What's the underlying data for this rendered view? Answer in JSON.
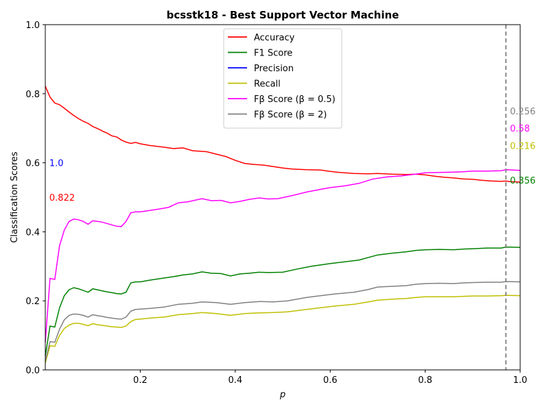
{
  "chart_data": {
    "type": "line",
    "title": "bcsstk18 - Best Support Vector Machine",
    "xlabel": "p",
    "ylabel": "Classification Scores",
    "xlim": [
      0.0,
      1.0
    ],
    "ylim": [
      0.0,
      1.0
    ],
    "x_ticks": [
      "0.2",
      "0.4",
      "0.6",
      "0.8",
      "1.0"
    ],
    "y_ticks": [
      "0.0",
      "0.2",
      "0.4",
      "0.6",
      "0.8",
      "1.0"
    ],
    "grid": false,
    "legend_position": "upper center",
    "vline": {
      "x": 0.97,
      "color": "#808080",
      "style": "dashed"
    },
    "series": [
      {
        "name": "Accuracy",
        "legend_label": "Accuracy",
        "color": "#ff0000",
        "x": [
          0.0,
          0.01,
          0.02,
          0.03,
          0.04,
          0.05,
          0.06,
          0.07,
          0.08,
          0.09,
          0.1,
          0.11,
          0.12,
          0.13,
          0.14,
          0.15,
          0.16,
          0.17,
          0.18,
          0.19,
          0.2,
          0.22,
          0.25,
          0.27,
          0.29,
          0.31,
          0.34,
          0.36,
          0.38,
          0.4,
          0.42,
          0.44,
          0.46,
          0.48,
          0.5,
          0.52,
          0.55,
          0.58,
          0.6,
          0.62,
          0.65,
          0.68,
          0.7,
          0.73,
          0.76,
          0.78,
          0.8,
          0.82,
          0.84,
          0.86,
          0.88,
          0.9,
          0.92,
          0.94,
          0.96,
          0.97,
          0.98,
          1.0
        ],
        "y": [
          0.822,
          0.79,
          0.773,
          0.768,
          0.758,
          0.747,
          0.737,
          0.728,
          0.72,
          0.714,
          0.705,
          0.699,
          0.692,
          0.686,
          0.678,
          0.675,
          0.666,
          0.66,
          0.656,
          0.659,
          0.655,
          0.65,
          0.645,
          0.641,
          0.643,
          0.635,
          0.632,
          0.625,
          0.618,
          0.607,
          0.598,
          0.595,
          0.593,
          0.589,
          0.585,
          0.582,
          0.58,
          0.579,
          0.575,
          0.572,
          0.569,
          0.568,
          0.569,
          0.567,
          0.566,
          0.567,
          0.565,
          0.561,
          0.558,
          0.556,
          0.553,
          0.552,
          0.549,
          0.547,
          0.546,
          0.547,
          0.545,
          0.544
        ]
      },
      {
        "name": "F1 Score",
        "legend_label": "F1 Score",
        "color": "#008000",
        "x": [
          0.0,
          0.01,
          0.02,
          0.03,
          0.04,
          0.05,
          0.06,
          0.07,
          0.08,
          0.09,
          0.1,
          0.11,
          0.12,
          0.13,
          0.14,
          0.15,
          0.16,
          0.17,
          0.18,
          0.19,
          0.2,
          0.22,
          0.25,
          0.27,
          0.29,
          0.31,
          0.33,
          0.35,
          0.37,
          0.39,
          0.41,
          0.43,
          0.45,
          0.47,
          0.5,
          0.53,
          0.56,
          0.6,
          0.63,
          0.66,
          0.7,
          0.73,
          0.76,
          0.78,
          0.8,
          0.83,
          0.86,
          0.88,
          0.9,
          0.93,
          0.96,
          0.97,
          1.0
        ],
        "y": [
          0.04,
          0.127,
          0.124,
          0.18,
          0.215,
          0.232,
          0.238,
          0.235,
          0.23,
          0.225,
          0.235,
          0.232,
          0.229,
          0.226,
          0.224,
          0.221,
          0.22,
          0.225,
          0.252,
          0.255,
          0.255,
          0.26,
          0.266,
          0.27,
          0.275,
          0.278,
          0.284,
          0.28,
          0.279,
          0.272,
          0.278,
          0.28,
          0.283,
          0.282,
          0.283,
          0.292,
          0.3,
          0.308,
          0.313,
          0.318,
          0.333,
          0.338,
          0.342,
          0.346,
          0.348,
          0.349,
          0.348,
          0.35,
          0.351,
          0.353,
          0.353,
          0.356,
          0.355
        ]
      },
      {
        "name": "Precision",
        "legend_label": "Precision",
        "color": "#0000ff",
        "x": [],
        "y": []
      },
      {
        "name": "Recall",
        "legend_label": "Recall",
        "color": "#bfbf00",
        "x": [
          0.0,
          0.01,
          0.02,
          0.03,
          0.04,
          0.05,
          0.06,
          0.07,
          0.08,
          0.09,
          0.1,
          0.11,
          0.12,
          0.13,
          0.14,
          0.15,
          0.16,
          0.17,
          0.18,
          0.19,
          0.2,
          0.22,
          0.25,
          0.28,
          0.31,
          0.33,
          0.36,
          0.39,
          0.42,
          0.45,
          0.48,
          0.51,
          0.55,
          0.58,
          0.61,
          0.65,
          0.68,
          0.7,
          0.73,
          0.76,
          0.78,
          0.8,
          0.83,
          0.86,
          0.88,
          0.9,
          0.93,
          0.96,
          0.97,
          1.0
        ],
        "y": [
          0.02,
          0.07,
          0.068,
          0.1,
          0.12,
          0.13,
          0.135,
          0.135,
          0.132,
          0.128,
          0.134,
          0.131,
          0.129,
          0.127,
          0.125,
          0.124,
          0.123,
          0.127,
          0.14,
          0.146,
          0.147,
          0.15,
          0.153,
          0.16,
          0.163,
          0.166,
          0.163,
          0.158,
          0.163,
          0.165,
          0.166,
          0.168,
          0.175,
          0.18,
          0.185,
          0.19,
          0.197,
          0.202,
          0.205,
          0.207,
          0.21,
          0.212,
          0.212,
          0.212,
          0.213,
          0.214,
          0.214,
          0.215,
          0.216,
          0.215
        ]
      },
      {
        "name": "Fβ Score (β=0.5)",
        "legend_label": "Fβ Score (β = 0.5)",
        "color": "#ff00ff",
        "x": [
          0.0,
          0.01,
          0.02,
          0.03,
          0.04,
          0.05,
          0.06,
          0.07,
          0.08,
          0.09,
          0.1,
          0.11,
          0.12,
          0.13,
          0.14,
          0.15,
          0.16,
          0.17,
          0.18,
          0.19,
          0.2,
          0.22,
          0.24,
          0.26,
          0.28,
          0.3,
          0.33,
          0.35,
          0.37,
          0.39,
          0.41,
          0.43,
          0.45,
          0.47,
          0.49,
          0.52,
          0.55,
          0.58,
          0.6,
          0.63,
          0.66,
          0.69,
          0.72,
          0.75,
          0.78,
          0.8,
          0.83,
          0.86,
          0.88,
          0.9,
          0.93,
          0.96,
          0.97,
          1.0
        ],
        "y": [
          0.08,
          0.265,
          0.262,
          0.36,
          0.405,
          0.43,
          0.437,
          0.435,
          0.43,
          0.422,
          0.432,
          0.43,
          0.428,
          0.424,
          0.42,
          0.416,
          0.415,
          0.43,
          0.455,
          0.458,
          0.458,
          0.462,
          0.466,
          0.471,
          0.484,
          0.487,
          0.496,
          0.49,
          0.491,
          0.484,
          0.488,
          0.494,
          0.498,
          0.495,
          0.496,
          0.505,
          0.515,
          0.523,
          0.528,
          0.533,
          0.54,
          0.553,
          0.559,
          0.562,
          0.567,
          0.571,
          0.572,
          0.573,
          0.574,
          0.576,
          0.576,
          0.577,
          0.58,
          0.578
        ]
      },
      {
        "name": "Fβ Score (β=2)",
        "legend_label": "Fβ Score (β = 2)",
        "color": "#808080",
        "x": [
          0.0,
          0.01,
          0.02,
          0.03,
          0.04,
          0.05,
          0.06,
          0.07,
          0.08,
          0.09,
          0.1,
          0.11,
          0.12,
          0.13,
          0.14,
          0.15,
          0.16,
          0.17,
          0.18,
          0.19,
          0.2,
          0.22,
          0.25,
          0.28,
          0.31,
          0.33,
          0.36,
          0.39,
          0.42,
          0.45,
          0.48,
          0.51,
          0.55,
          0.58,
          0.61,
          0.65,
          0.68,
          0.7,
          0.73,
          0.76,
          0.78,
          0.8,
          0.83,
          0.86,
          0.88,
          0.9,
          0.93,
          0.96,
          0.97,
          1.0
        ],
        "y": [
          0.025,
          0.082,
          0.08,
          0.118,
          0.145,
          0.158,
          0.162,
          0.161,
          0.158,
          0.153,
          0.16,
          0.157,
          0.155,
          0.152,
          0.15,
          0.148,
          0.147,
          0.153,
          0.17,
          0.175,
          0.176,
          0.178,
          0.182,
          0.19,
          0.193,
          0.197,
          0.195,
          0.19,
          0.195,
          0.198,
          0.197,
          0.2,
          0.21,
          0.215,
          0.22,
          0.225,
          0.233,
          0.24,
          0.242,
          0.244,
          0.248,
          0.25,
          0.251,
          0.25,
          0.252,
          0.253,
          0.254,
          0.254,
          0.256,
          0.255
        ]
      }
    ],
    "annotations": [
      {
        "text": "1.0",
        "color": "#0000ff",
        "x": 0.01,
        "y": 0.6
      },
      {
        "text": "0.822",
        "color": "#ff0000",
        "x": 0.01,
        "y": 0.5
      },
      {
        "text": "0.256",
        "color": "#808080",
        "x": 0.98,
        "y": 0.75
      },
      {
        "text": "0.58",
        "color": "#ff00ff",
        "x": 0.98,
        "y": 0.7
      },
      {
        "text": "0.216",
        "color": "#bfbf00",
        "x": 0.98,
        "y": 0.65
      },
      {
        "text": "0.356",
        "color": "#008000",
        "x": 0.98,
        "y": 0.55
      }
    ]
  }
}
